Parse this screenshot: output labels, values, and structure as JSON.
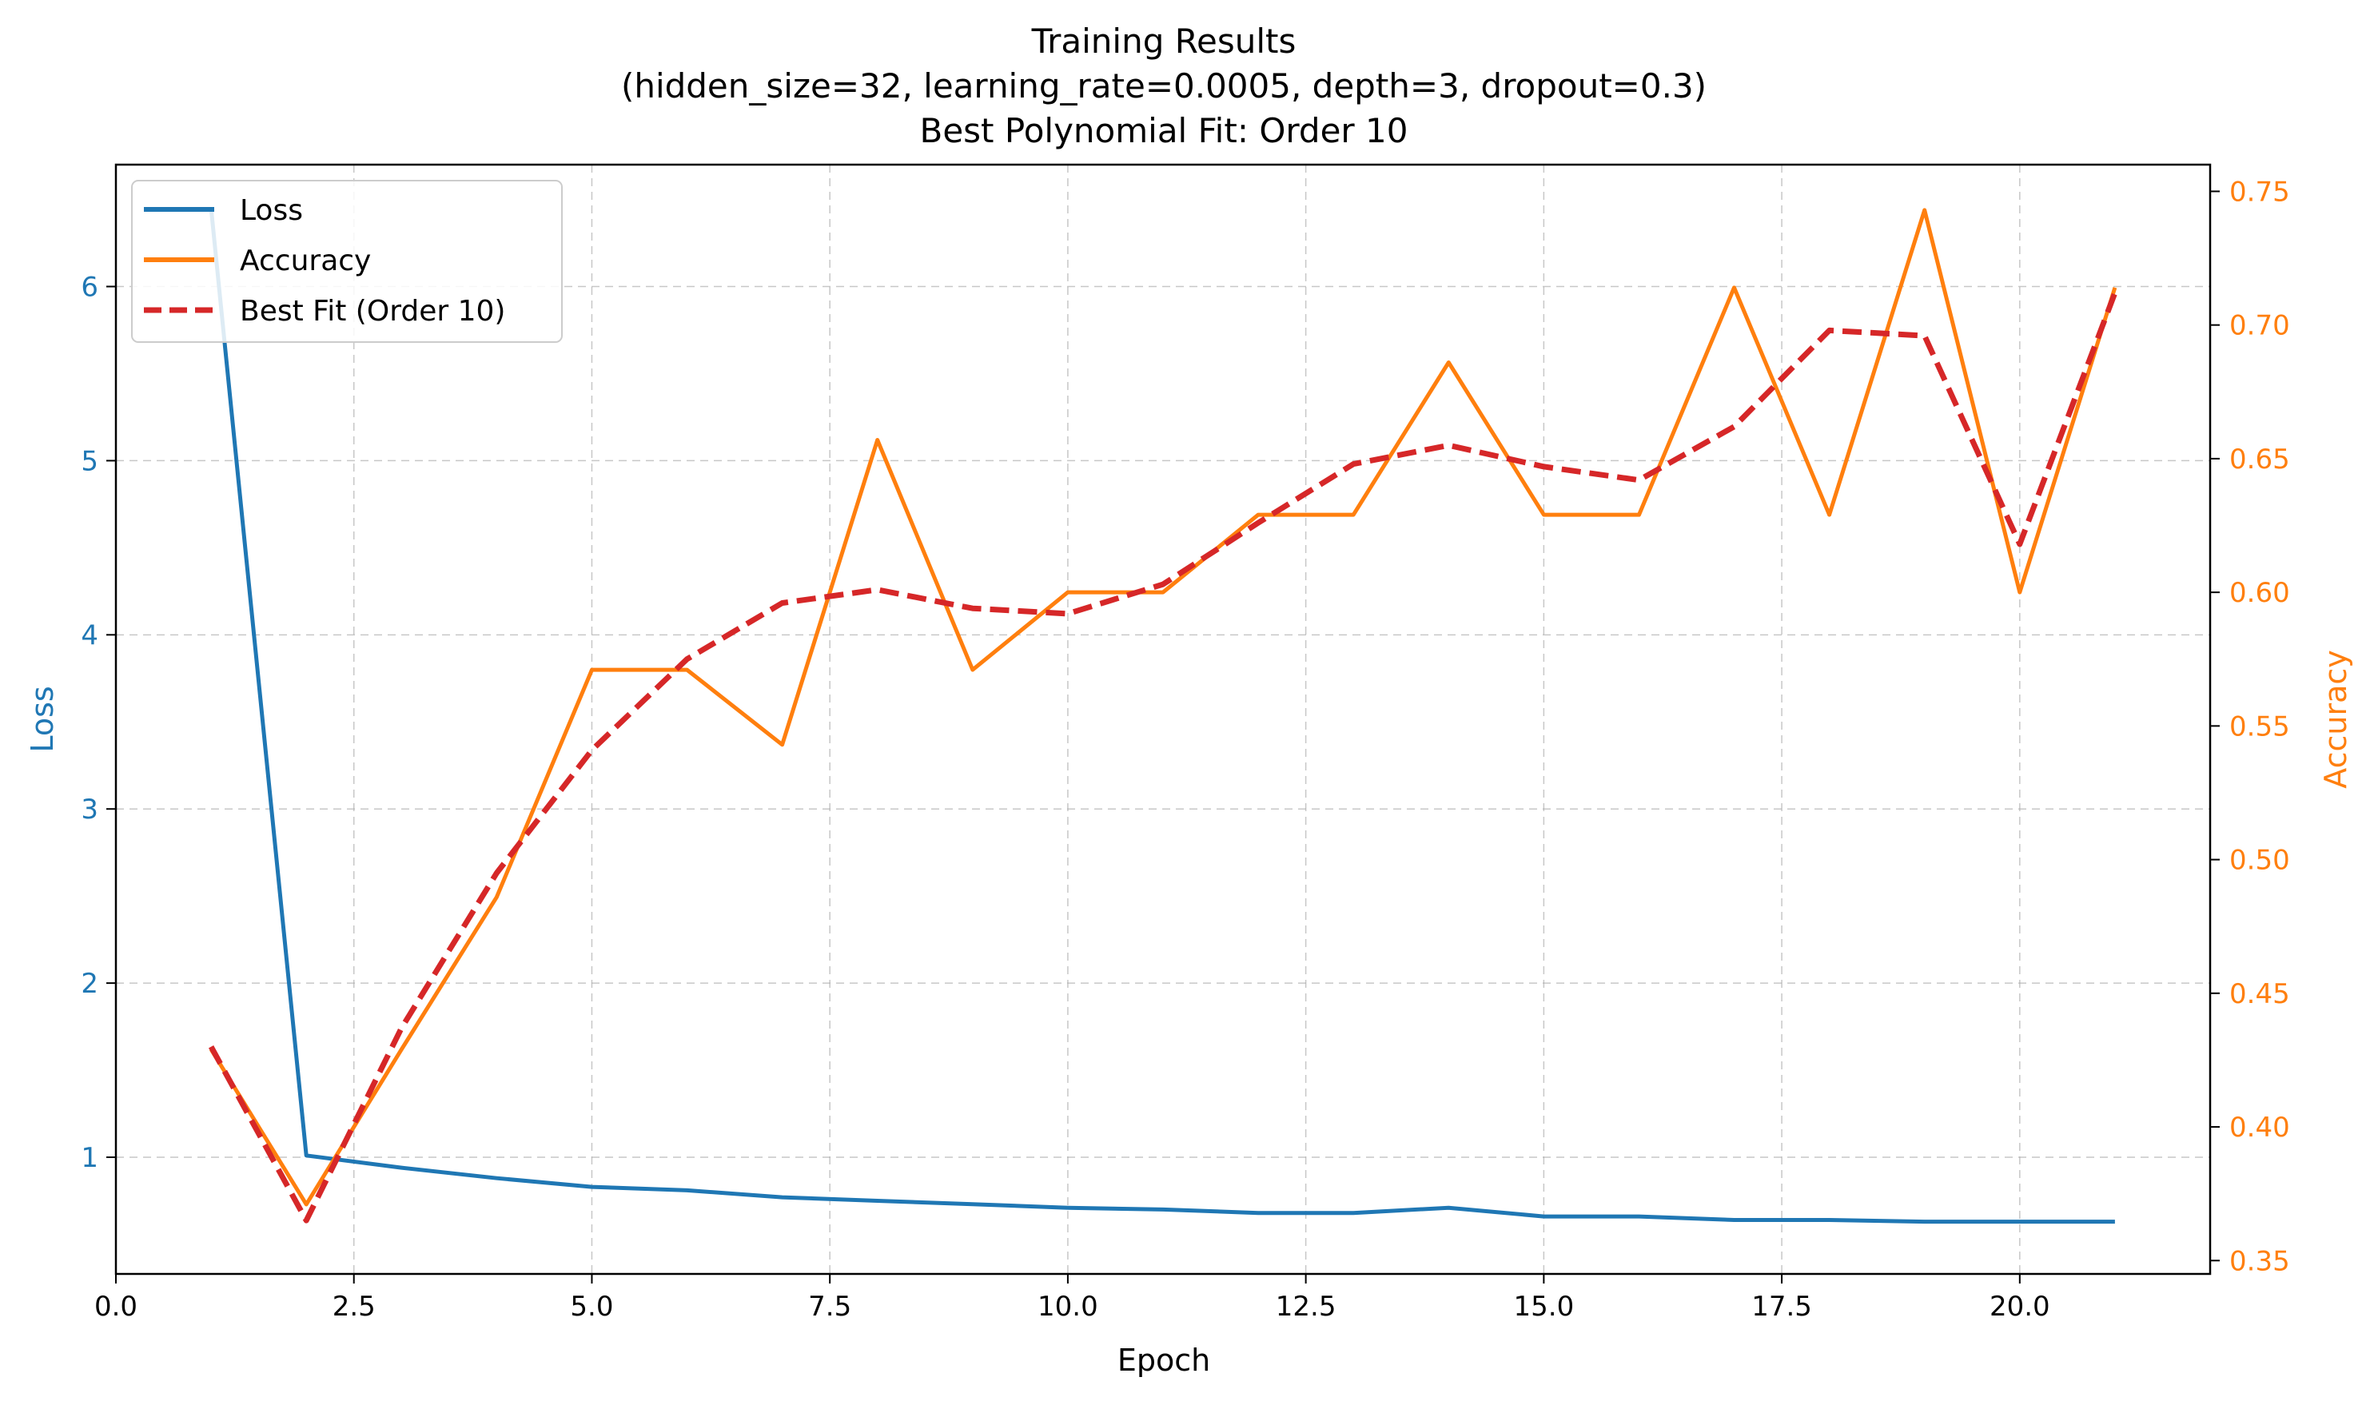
{
  "chart_data": {
    "type": "line",
    "title": "Training Results",
    "subtitle": "(hidden_size=32, learning_rate=0.0005, depth=3, dropout=0.3)",
    "subtitle2": "Best Polynomial Fit: Order 10",
    "xlabel": "Epoch",
    "ylabel_left": "Loss",
    "ylabel_right": "Accuracy",
    "xlim": [
      0,
      22
    ],
    "ylim_left": [
      0.33,
      6.7
    ],
    "ylim_right": [
      0.345,
      0.76
    ],
    "x_ticks": [
      "0.0",
      "2.5",
      "5.0",
      "7.5",
      "10.0",
      "12.5",
      "15.0",
      "17.5",
      "20.0"
    ],
    "left_ticks": [
      "1",
      "2",
      "3",
      "4",
      "5",
      "6"
    ],
    "right_ticks": [
      "0.35",
      "0.40",
      "0.45",
      "0.50",
      "0.55",
      "0.60",
      "0.65",
      "0.70",
      "0.75"
    ],
    "grid": true,
    "legend_position": "top-left",
    "x": [
      1,
      2,
      3,
      4,
      5,
      6,
      7,
      8,
      9,
      10,
      11,
      12,
      13,
      14,
      15,
      16,
      17,
      18,
      19,
      20,
      21
    ],
    "series": [
      {
        "name": "Loss",
        "axis": "left",
        "color": "#1f77b4",
        "style": "solid",
        "values": [
          6.45,
          1.01,
          0.94,
          0.88,
          0.83,
          0.81,
          0.77,
          0.75,
          0.73,
          0.71,
          0.7,
          0.68,
          0.68,
          0.71,
          0.66,
          0.66,
          0.64,
          0.64,
          0.63,
          0.63,
          0.63
        ]
      },
      {
        "name": "Accuracy",
        "axis": "right",
        "color": "#ff7f0e",
        "style": "solid",
        "values": [
          0.429,
          0.371,
          0.429,
          0.486,
          0.571,
          0.571,
          0.543,
          0.657,
          0.571,
          0.6,
          0.6,
          0.629,
          0.629,
          0.686,
          0.629,
          0.629,
          0.714,
          0.629,
          0.743,
          0.6,
          0.714
        ]
      },
      {
        "name": "Best Fit (Order 10)",
        "axis": "right",
        "color": "#d62728",
        "style": "dashed",
        "values": [
          0.43,
          0.365,
          0.437,
          0.495,
          0.541,
          0.575,
          0.596,
          0.601,
          0.594,
          0.592,
          0.603,
          0.626,
          0.648,
          0.655,
          0.647,
          0.642,
          0.662,
          0.698,
          0.696,
          0.618,
          0.712
        ]
      }
    ]
  }
}
